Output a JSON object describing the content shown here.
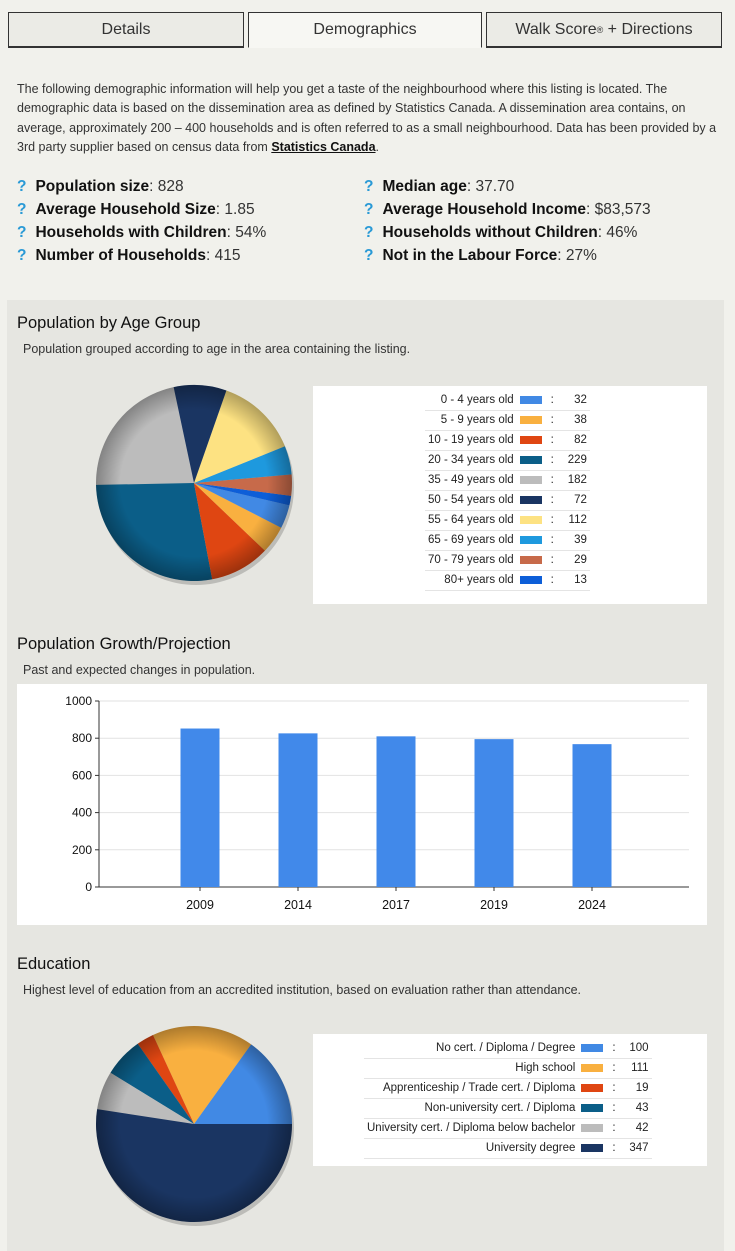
{
  "tabs": [
    {
      "label": "Details"
    },
    {
      "label": "Demographics"
    },
    {
      "label": "Walk Score",
      "sup": "®",
      "label_suffix": " + Directions"
    }
  ],
  "intro": {
    "text": "The following demographic information will help you get a taste of the neighbourhood where this listing is located. The demographic data is based on the dissemination area as defined by Statistics Canada. A dissemination area contains, on average, approximately 200 – 400 households and is often referred to as a small neighbourhood. Data has been provided by a 3rd party supplier based on census data from ",
    "link_text": "Statistics Canada",
    "end": "."
  },
  "stats": [
    {
      "icon": "?",
      "label": "Population size",
      "value": ": 828"
    },
    {
      "icon": "?",
      "label": "Median age",
      "value": ": 37.70"
    },
    {
      "icon": "?",
      "label": "Average Household Size",
      "value": ": 1.85"
    },
    {
      "icon": "?",
      "label": "Average Household Income",
      "value": ": $83,573"
    },
    {
      "icon": "?",
      "label": "Households with Children",
      "value": ": 54%"
    },
    {
      "icon": "?",
      "label": "Households without Children",
      "value": ": 46%"
    },
    {
      "icon": "?",
      "label": "Number of Households",
      "value": ": 415"
    },
    {
      "icon": "?",
      "label": "Not in the Labour Force",
      "value": ": 27%"
    }
  ],
  "age_section": {
    "title": "Population by Age Group",
    "subtitle": "Population grouped according to age in the area containing the listing."
  },
  "growth_section": {
    "title": "Population Growth/Projection",
    "subtitle": "Past and expected changes in population."
  },
  "education_section": {
    "title": "Education",
    "subtitle": "Highest level of education from an accredited institution, based on evaluation rather than attendance."
  },
  "colon": ":",
  "chart_data": [
    {
      "type": "pie",
      "categories": [
        "0 - 4 years old",
        "5 - 9 years old",
        "10 - 19 years old",
        "20 - 34 years old",
        "35 - 49 years old",
        "50 - 54 years old",
        "55 - 64 years old",
        "65 - 69 years old",
        "70 - 79 years old",
        "80+ years old"
      ],
      "values": [
        32,
        38,
        82,
        229,
        182,
        72,
        112,
        39,
        29,
        13
      ],
      "colors": [
        "#4189e4",
        "#f9b040",
        "#df4612",
        "#0b5e88",
        "#bcbcbc",
        "#1a3562",
        "#fde282",
        "#1e99de",
        "#c76a4a",
        "#0d5ed8"
      ],
      "legend_position": "right"
    },
    {
      "type": "bar",
      "categories": [
        "2009",
        "2014",
        "2017",
        "2019",
        "2024"
      ],
      "values": [
        852,
        826,
        810,
        795,
        768
      ],
      "ylim": [
        0,
        1000
      ],
      "yticks": [
        "0",
        "200",
        "400",
        "600",
        "800",
        "1000"
      ],
      "color": "#4189ea",
      "grid": true
    },
    {
      "type": "pie",
      "categories": [
        "No cert. / Diploma / Degree",
        "High school",
        "Apprenticeship / Trade cert. / Diploma",
        "Non-university cert. / Diploma",
        "University cert. / Diploma below bachelor",
        "University degree"
      ],
      "values": [
        100,
        111,
        19,
        43,
        42,
        347
      ],
      "colors": [
        "#4189e4",
        "#f9b040",
        "#df4612",
        "#0b5e88",
        "#bcbcbc",
        "#1a3562"
      ],
      "legend_position": "right"
    }
  ]
}
